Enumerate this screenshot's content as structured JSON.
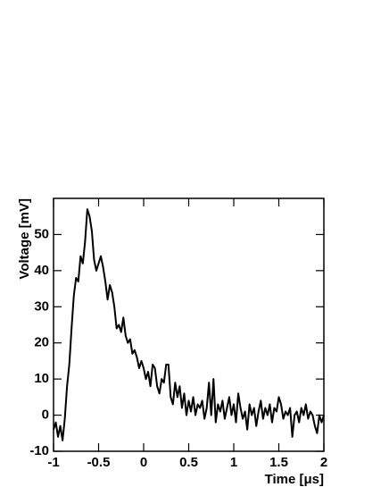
{
  "chart_data": {
    "type": "line",
    "x_label": "Time [μs]",
    "y_label": "Voltage [mV]",
    "x": [
      -1,
      -0.975,
      -0.95,
      -0.925,
      -0.9,
      -0.875,
      -0.85,
      -0.825,
      -0.8,
      -0.775,
      -0.75,
      -0.725,
      -0.7,
      -0.675,
      -0.65,
      -0.625,
      -0.6,
      -0.575,
      -0.55,
      -0.525,
      -0.5,
      -0.475,
      -0.45,
      -0.425,
      -0.4,
      -0.375,
      -0.35,
      -0.325,
      -0.3,
      -0.275,
      -0.25,
      -0.225,
      -0.2,
      -0.175,
      -0.15,
      -0.125,
      -0.1,
      -0.075,
      -0.05,
      -0.025,
      0,
      0.025,
      0.05,
      0.075,
      0.1,
      0.125,
      0.15,
      0.175,
      0.2,
      0.225,
      0.25,
      0.275,
      0.3,
      0.325,
      0.35,
      0.375,
      0.4,
      0.425,
      0.45,
      0.475,
      0.5,
      0.525,
      0.55,
      0.575,
      0.6,
      0.625,
      0.65,
      0.675,
      0.7,
      0.725,
      0.75,
      0.775,
      0.8,
      0.825,
      0.85,
      0.875,
      0.9,
      0.925,
      0.95,
      0.975,
      1,
      1.025,
      1.05,
      1.075,
      1.1,
      1.125,
      1.15,
      1.175,
      1.2,
      1.225,
      1.25,
      1.275,
      1.3,
      1.325,
      1.35,
      1.375,
      1.4,
      1.425,
      1.45,
      1.475,
      1.5,
      1.525,
      1.55,
      1.575,
      1.6,
      1.625,
      1.65,
      1.675,
      1.7,
      1.725,
      1.75,
      1.775,
      1.8,
      1.825,
      1.85,
      1.875,
      1.9,
      1.925,
      1.95,
      1.975,
      2
    ],
    "series": [
      {
        "color": "#000000",
        "values": [
          -4,
          -2,
          -6,
          -3,
          -7,
          -1,
          8,
          14,
          24,
          33,
          38,
          37,
          44,
          42,
          48,
          57,
          55,
          51,
          43,
          40,
          42,
          44,
          41,
          37,
          32,
          36,
          34,
          30,
          24,
          25,
          23,
          27,
          22,
          20,
          21,
          17,
          18,
          16,
          13,
          15,
          13,
          10,
          12,
          8,
          14,
          13,
          8,
          6,
          10,
          9,
          14,
          14,
          5,
          3,
          9,
          5,
          8,
          2,
          6,
          0,
          4,
          1,
          5,
          0,
          3,
          2,
          4,
          -1,
          2,
          9,
          0,
          10,
          -2,
          3,
          1,
          4,
          -1,
          2,
          5,
          0,
          3,
          -2,
          6,
          2,
          -1,
          1,
          -4,
          3,
          0,
          2,
          -3,
          1,
          4,
          -1,
          2,
          0,
          3,
          -2,
          2,
          1,
          5,
          3,
          -1,
          1,
          0,
          2,
          -6,
          0,
          1,
          -2,
          2,
          0,
          3,
          -1,
          1,
          0,
          -3,
          -5,
          0,
          -2,
          0
        ]
      }
    ],
    "xlim": [
      -1,
      2
    ],
    "ylim": [
      -10,
      60
    ],
    "xticks": [
      -1,
      -0.5,
      0,
      0.5,
      1,
      1.5,
      2
    ],
    "yticks": [
      -10,
      0,
      10,
      20,
      30,
      40,
      50
    ]
  }
}
